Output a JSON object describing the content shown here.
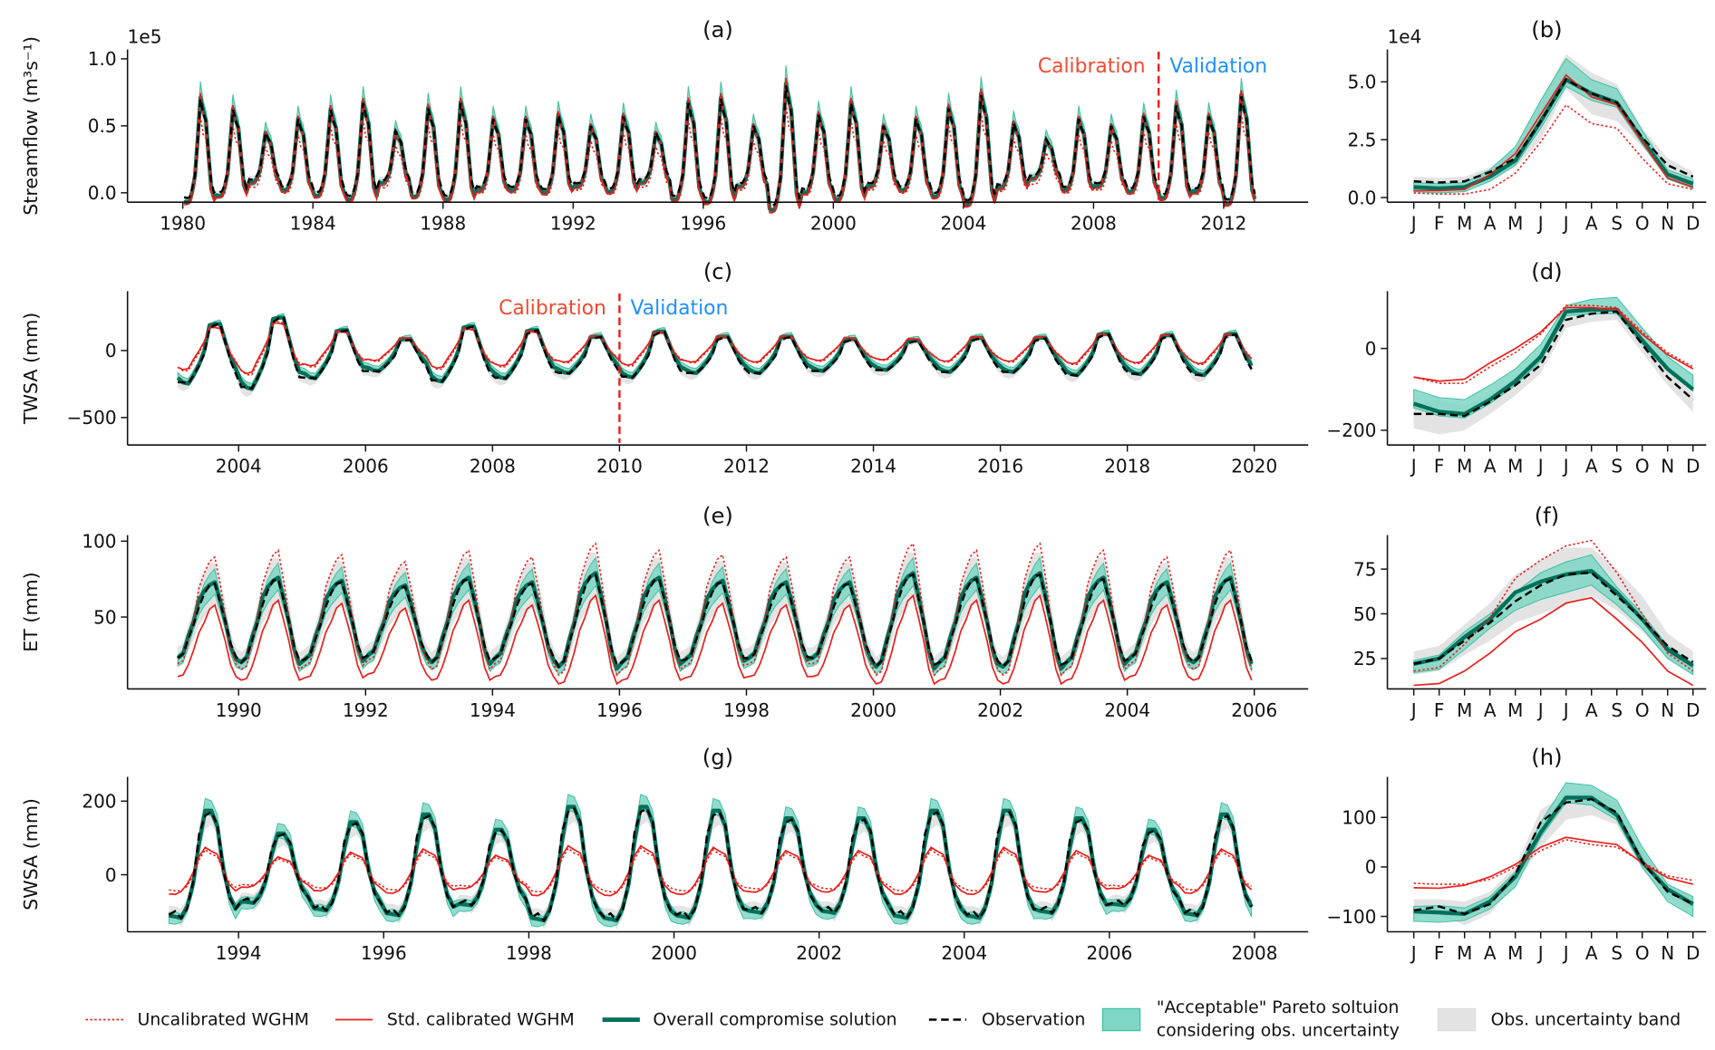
{
  "legend": [
    {
      "label": "Uncalibrated WGHM",
      "style": "dotted-line",
      "color": "#e8201c"
    },
    {
      "label": "Std. calibrated WGHM",
      "style": "solid-line",
      "color": "#e8201c"
    },
    {
      "label": "Overall compromise solution",
      "style": "thick-line",
      "color": "#00705a"
    },
    {
      "label": "Observation",
      "style": "dashed-line",
      "color": "#000000"
    },
    {
      "label": "\"Acceptable\" Pareto soltuion",
      "label2": "considering obs. uncertainty",
      "style": "patch",
      "color": "#7fd6c6"
    },
    {
      "label": "Obs. uncertainty band",
      "style": "patch",
      "color": "#e3e3e3"
    }
  ],
  "colors": {
    "calibration_text": "#f04a30",
    "validation_text": "#1e8fff",
    "split_line": "#e8201c",
    "pareto_edge": "#3dbf9f",
    "obs_band": "#e3e3e3"
  },
  "chart_data": [
    {
      "type": "line",
      "title": "(a)",
      "ylabel": "Streamflow (m³s⁻¹)",
      "offset_label": "1e5",
      "xlim": [
        1978.3,
        2014.6
      ],
      "ylim": [
        -0.07,
        1.07
      ],
      "xticks": [
        1980,
        1984,
        1988,
        1992,
        1996,
        2000,
        2004,
        2008,
        2012
      ],
      "yticks": [
        0,
        0.5,
        1.0
      ],
      "ytick_labels": [
        "0.0",
        "0.5",
        "1.0"
      ],
      "split_year": 2010,
      "annotations": [
        "Calibration",
        "Validation"
      ],
      "years": [
        1980,
        2012
      ],
      "annual_peak_obs": [
        0.7,
        0.62,
        0.45,
        0.55,
        0.62,
        0.67,
        0.46,
        0.63,
        0.67,
        0.55,
        0.55,
        0.58,
        0.5,
        0.57,
        0.45,
        0.67,
        0.7,
        0.5,
        0.8,
        0.58,
        0.67,
        0.5,
        0.55,
        0.63,
        0.73,
        0.52,
        0.4,
        0.55,
        0.5,
        0.57,
        0.65,
        0.57,
        0.72
      ]
    },
    {
      "type": "line",
      "title": "(b)",
      "offset_label": "1e4",
      "ylim": [
        -0.2,
        6.4
      ],
      "categories": [
        "J",
        "F",
        "M",
        "A",
        "M",
        "J",
        "J",
        "A",
        "S",
        "O",
        "N",
        "D"
      ],
      "yticks": [
        0,
        2.5,
        5.0
      ],
      "ytick_labels": [
        "0.0",
        "2.5",
        "5.0"
      ],
      "series": {
        "uncal": [
          0.2,
          0.15,
          0.15,
          0.35,
          1.05,
          2.4,
          4.0,
          3.2,
          3.0,
          1.7,
          0.6,
          0.35
        ],
        "stdcal": [
          0.3,
          0.3,
          0.35,
          1.0,
          1.9,
          3.6,
          5.3,
          4.35,
          4.0,
          2.4,
          0.85,
          0.45
        ],
        "compromise": [
          0.45,
          0.4,
          0.45,
          0.9,
          1.6,
          3.3,
          5.1,
          4.5,
          4.1,
          2.5,
          1.0,
          0.6
        ],
        "obs": [
          0.7,
          0.65,
          0.7,
          1.1,
          1.7,
          3.3,
          5.1,
          4.5,
          4.1,
          2.6,
          1.4,
          0.9
        ],
        "pareto_lo": [
          0.25,
          0.2,
          0.25,
          0.7,
          1.4,
          3.0,
          4.8,
          4.2,
          3.9,
          2.3,
          0.8,
          0.4
        ],
        "pareto_hi": [
          0.65,
          0.6,
          0.65,
          1.2,
          2.2,
          4.2,
          6.0,
          5.1,
          4.7,
          2.9,
          1.2,
          0.8
        ],
        "obs_lo": [
          0.4,
          0.4,
          0.4,
          0.8,
          1.3,
          2.5,
          4.7,
          3.6,
          3.3,
          2.2,
          1.1,
          0.6
        ],
        "obs_hi": [
          0.9,
          0.85,
          0.9,
          1.3,
          2.1,
          4.2,
          6.2,
          5.4,
          4.9,
          3.0,
          1.7,
          1.1
        ]
      }
    },
    {
      "type": "line",
      "title": "(c)",
      "ylabel": "TWSA (mm)",
      "xlim": [
        2002.25,
        2020.85
      ],
      "ylim": [
        -705,
        443
      ],
      "xticks": [
        2004,
        2006,
        2008,
        2010,
        2012,
        2014,
        2016,
        2018,
        2020
      ],
      "yticks": [
        -500,
        0
      ],
      "ytick_labels": [
        "−500",
        "0"
      ],
      "split_year": 2010,
      "annotations": [
        "Calibration",
        "Validation"
      ],
      "years": [
        2003,
        2019
      ],
      "annual_peak_obs": [
        200,
        250,
        150,
        80,
        180,
        150,
        100,
        140,
        100,
        100,
        80,
        70,
        90,
        90,
        120,
        110,
        120
      ]
    },
    {
      "type": "line",
      "title": "(d)",
      "ylim": [
        -236,
        140
      ],
      "categories": [
        "J",
        "F",
        "M",
        "A",
        "M",
        "J",
        "J",
        "A",
        "S",
        "O",
        "N",
        "D"
      ],
      "yticks": [
        -200,
        0
      ],
      "ytick_labels": [
        "−200",
        "0"
      ],
      "series": {
        "uncal": [
          -70,
          -85,
          -85,
          -45,
          -10,
          35,
          105,
          105,
          100,
          40,
          -10,
          -45
        ],
        "stdcal": [
          -70,
          -80,
          -75,
          -35,
          0,
          40,
          100,
          100,
          95,
          35,
          -15,
          -50
        ],
        "compromise": [
          -135,
          -155,
          -160,
          -125,
          -80,
          -20,
          90,
          95,
          95,
          20,
          -50,
          -100
        ],
        "obs": [
          -160,
          -160,
          -165,
          -130,
          -90,
          -40,
          70,
          85,
          90,
          10,
          -70,
          -125
        ],
        "pareto_lo": [
          -145,
          -165,
          -170,
          -135,
          -90,
          -30,
          80,
          85,
          85,
          10,
          -55,
          -105
        ],
        "pareto_hi": [
          -100,
          -120,
          -125,
          -90,
          -50,
          10,
          105,
          120,
          125,
          50,
          -20,
          -65
        ],
        "obs_lo": [
          -195,
          -210,
          -200,
          -160,
          -115,
          -60,
          50,
          65,
          70,
          -10,
          -90,
          -155
        ],
        "obs_hi": [
          -130,
          -125,
          -140,
          -110,
          -70,
          -20,
          80,
          95,
          100,
          20,
          -55,
          -110
        ]
      }
    },
    {
      "type": "line",
      "title": "(e)",
      "ylabel": "ET (mm)",
      "xlim": [
        1988.25,
        2006.85
      ],
      "ylim": [
        2.6,
        104
      ],
      "xticks": [
        1990,
        1992,
        1994,
        1996,
        1998,
        2000,
        2002,
        2004,
        2006
      ],
      "yticks": [
        50,
        100
      ],
      "ytick_labels": [
        "50",
        "100"
      ],
      "years": [
        1989,
        2005
      ],
      "annual_peak_obs": [
        72,
        75,
        73,
        70,
        75,
        72,
        78,
        75,
        73,
        72,
        72,
        78,
        75,
        78,
        75,
        72,
        75
      ]
    },
    {
      "type": "line",
      "title": "(f)",
      "ylim": [
        8,
        94
      ],
      "categories": [
        "J",
        "F",
        "M",
        "A",
        "M",
        "J",
        "J",
        "A",
        "S",
        "O",
        "N",
        "D"
      ],
      "yticks": [
        25,
        50,
        75
      ],
      "ytick_labels": [
        "25",
        "50",
        "75"
      ],
      "series": {
        "uncal": [
          18,
          20,
          33,
          48,
          70,
          80,
          88,
          91,
          73,
          50,
          28,
          18
        ],
        "stdcal": [
          10,
          11,
          18,
          28,
          40,
          47,
          56,
          59,
          47,
          34,
          18,
          10
        ],
        "compromise": [
          22,
          25,
          37,
          47,
          62,
          68,
          72,
          74,
          62,
          47,
          30,
          21
        ],
        "obs": [
          22,
          25,
          35,
          45,
          57,
          66,
          72,
          73,
          60,
          47,
          32,
          23
        ],
        "pareto_lo": [
          17,
          19,
          30,
          42,
          52,
          58,
          62,
          66,
          55,
          42,
          25,
          16
        ],
        "pareto_hi": [
          24,
          27,
          40,
          50,
          62,
          73,
          79,
          83,
          65,
          50,
          32,
          22
        ],
        "obs_lo": [
          16,
          18,
          27,
          35,
          45,
          50,
          55,
          60,
          52,
          40,
          25,
          17
        ],
        "obs_hi": [
          29,
          32,
          44,
          56,
          72,
          80,
          87,
          87,
          75,
          60,
          39,
          29
        ]
      }
    },
    {
      "type": "line",
      "title": "(g)",
      "ylabel": "SWSA (mm)",
      "xlim": [
        1992.47,
        2008.74
      ],
      "ylim": [
        -155,
        266
      ],
      "xticks": [
        1994,
        1996,
        1998,
        2000,
        2002,
        2004,
        2006,
        2008
      ],
      "yticks": [
        0,
        200
      ],
      "ytick_labels": [
        "0",
        "200"
      ],
      "years": [
        1993,
        2007
      ],
      "annual_peak_obs": [
        170,
        110,
        140,
        160,
        120,
        180,
        180,
        170,
        150,
        150,
        170,
        170,
        150,
        120,
        160
      ]
    },
    {
      "type": "line",
      "title": "(h)",
      "ylim": [
        -131,
        182
      ],
      "categories": [
        "J",
        "F",
        "M",
        "A",
        "M",
        "J",
        "J",
        "A",
        "S",
        "O",
        "N",
        "D"
      ],
      "yticks": [
        -100,
        0,
        100
      ],
      "ytick_labels": [
        "−100",
        "0",
        "100"
      ],
      "series": {
        "uncal": [
          -33,
          -35,
          -35,
          -25,
          0,
          33,
          55,
          45,
          40,
          10,
          -18,
          -27
        ],
        "stdcal": [
          -42,
          -43,
          -37,
          -20,
          5,
          40,
          60,
          52,
          45,
          8,
          -22,
          -35
        ],
        "compromise": [
          -90,
          -92,
          -95,
          -70,
          -20,
          70,
          140,
          140,
          105,
          10,
          -45,
          -75
        ],
        "obs": [
          -88,
          -80,
          -95,
          -75,
          -15,
          90,
          130,
          137,
          110,
          10,
          -50,
          -75
        ],
        "pareto_lo": [
          -110,
          -112,
          -108,
          -85,
          -40,
          60,
          130,
          125,
          95,
          0,
          -70,
          -100
        ],
        "pareto_hi": [
          -80,
          -78,
          -83,
          -60,
          -10,
          90,
          170,
          165,
          135,
          40,
          -35,
          -60
        ],
        "obs_lo": [
          -100,
          -95,
          -118,
          -95,
          -35,
          40,
          95,
          105,
          85,
          -5,
          -60,
          -85
        ],
        "obs_hi": [
          -65,
          -65,
          -70,
          -50,
          0,
          115,
          150,
          150,
          130,
          30,
          -40,
          -60
        ]
      }
    }
  ]
}
